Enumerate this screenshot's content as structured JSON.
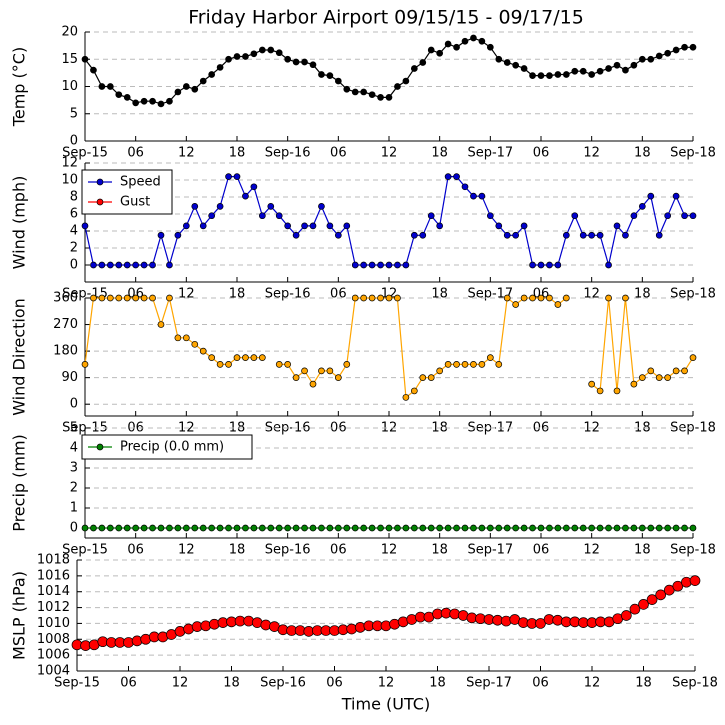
{
  "chart_data": [
    {
      "type": "line",
      "title": "Friday Harbor Airport 09/15/15 - 09/17/15",
      "ylabel": "Temp (°C)",
      "x": [
        0,
        1,
        2,
        3,
        4,
        5,
        6,
        7,
        8,
        9,
        10,
        11,
        12,
        13,
        14,
        15,
        16,
        17,
        18,
        19,
        20,
        21,
        22,
        23,
        24,
        25,
        26,
        27,
        28,
        29,
        30,
        31,
        32,
        33,
        34,
        35,
        36,
        37,
        38,
        39,
        40,
        41,
        42,
        43,
        44,
        45,
        46,
        47,
        48,
        49,
        50,
        51,
        52,
        53,
        54,
        55,
        56,
        57,
        58,
        59,
        60,
        61,
        62,
        63,
        64,
        65,
        66,
        67,
        68,
        69,
        70,
        71,
        72
      ],
      "xlim": [
        0,
        72
      ],
      "xticks": [
        {
          "value": 0,
          "label": "Sep-15"
        },
        {
          "value": 6,
          "label": "06"
        },
        12,
        18,
        {
          "value": 24,
          "label": "Sep-16"
        },
        {
          "value": 30,
          "label": "06"
        },
        {
          "value": 36,
          "label": "12"
        },
        {
          "value": 42,
          "label": "18"
        },
        {
          "value": 48,
          "label": "Sep-17"
        },
        {
          "value": 54,
          "label": "06"
        },
        {
          "value": 60,
          "label": "12"
        },
        {
          "value": 66,
          "label": "18"
        },
        {
          "value": 72,
          "label": "Sep-18"
        }
      ],
      "ylim": [
        0,
        20
      ],
      "yticks": [
        0,
        5,
        10,
        15,
        20
      ],
      "grid": true,
      "series": [
        {
          "name": "Temp",
          "color": "#000000",
          "values": [
            15,
            13,
            10,
            10,
            8.5,
            8,
            7,
            7.3,
            7.3,
            6.8,
            7.3,
            9,
            10,
            9.5,
            11,
            12.2,
            13.5,
            15,
            15.5,
            15.5,
            16,
            16.7,
            16.7,
            16.2,
            15,
            14.5,
            14.5,
            14,
            12.2,
            12,
            11,
            9.5,
            9,
            9,
            8.5,
            8,
            8,
            10,
            11,
            13.3,
            14.4,
            16.7,
            16.1,
            17.8,
            17.2,
            18.3,
            18.9,
            18.3,
            17.2,
            15,
            14.4,
            13.9,
            13.3,
            12,
            12,
            12,
            12.2,
            12.2,
            12.8,
            12.8,
            12.2,
            12.8,
            13.3,
            13.9,
            13,
            13.9,
            15,
            15,
            15.6,
            16.1,
            16.7,
            17.2,
            17.2
          ]
        }
      ]
    },
    {
      "type": "line",
      "ylabel": "Wind (mph)",
      "x": [
        0,
        1,
        2,
        3,
        4,
        5,
        6,
        7,
        8,
        9,
        10,
        11,
        12,
        13,
        14,
        15,
        16,
        17,
        18,
        19,
        20,
        21,
        22,
        23,
        24,
        25,
        26,
        27,
        28,
        29,
        30,
        31,
        32,
        33,
        34,
        35,
        36,
        37,
        38,
        39,
        40,
        41,
        42,
        43,
        44,
        45,
        46,
        47,
        48,
        49,
        50,
        51,
        52,
        53,
        54,
        55,
        56,
        57,
        58,
        59,
        60,
        61,
        62,
        63,
        64,
        65,
        66,
        67,
        68,
        69,
        70,
        71,
        72
      ],
      "xlim": [
        0,
        72
      ],
      "xticks": [
        {
          "value": 0,
          "label": "Sep-15"
        },
        {
          "value": 6,
          "label": "06"
        },
        12,
        18,
        {
          "value": 24,
          "label": "Sep-16"
        },
        {
          "value": 30,
          "label": "06"
        },
        {
          "value": 36,
          "label": "12"
        },
        {
          "value": 42,
          "label": "18"
        },
        {
          "value": 48,
          "label": "Sep-17"
        },
        {
          "value": 54,
          "label": "06"
        },
        {
          "value": 60,
          "label": "12"
        },
        {
          "value": 66,
          "label": "18"
        },
        {
          "value": 72,
          "label": "Sep-18"
        }
      ],
      "ylim": [
        -2,
        12
      ],
      "yticks": [
        0,
        2,
        4,
        6,
        8,
        10,
        12
      ],
      "grid": true,
      "legend": "upper left",
      "series": [
        {
          "name": "Speed",
          "color": "#0000cc",
          "values": [
            4.6,
            0,
            0,
            0,
            0,
            0,
            0,
            0,
            0,
            3.5,
            0,
            3.5,
            4.6,
            6.9,
            4.6,
            5.8,
            6.9,
            10.4,
            10.4,
            8.1,
            9.2,
            5.8,
            6.9,
            5.8,
            4.6,
            3.5,
            4.6,
            4.6,
            6.9,
            4.6,
            3.5,
            4.6,
            0,
            0,
            0,
            0,
            0,
            0,
            0,
            3.5,
            3.5,
            5.8,
            4.6,
            10.4,
            10.4,
            9.2,
            8.1,
            8.1,
            5.8,
            4.6,
            3.5,
            3.5,
            4.6,
            0,
            0,
            0,
            0,
            3.5,
            5.8,
            3.5,
            3.5,
            3.5,
            0,
            4.6,
            3.5,
            5.8,
            6.9,
            8.1,
            3.5,
            5.8,
            8.1,
            5.8,
            5.8
          ]
        },
        {
          "name": "Gust",
          "color": "#ff0000",
          "values": [
            null,
            null,
            null,
            null,
            null,
            null,
            null,
            null,
            null,
            null,
            null,
            null,
            null,
            null,
            null,
            null,
            null,
            null,
            null,
            null,
            null,
            null,
            null,
            null,
            null,
            null,
            null,
            null,
            null,
            null,
            null,
            null,
            null,
            null,
            null,
            null,
            null,
            null,
            null,
            null,
            null,
            null,
            null,
            null,
            null,
            null,
            null,
            null,
            null,
            null,
            null,
            null,
            null,
            null,
            null,
            null,
            null,
            null,
            null,
            null,
            null,
            null,
            null,
            null,
            null,
            null,
            null,
            null,
            null,
            null,
            null,
            null,
            null
          ]
        }
      ]
    },
    {
      "type": "line",
      "ylabel": "Wind Direction",
      "x": [
        0,
        1,
        2,
        3,
        4,
        5,
        6,
        7,
        8,
        9,
        10,
        11,
        12,
        13,
        14,
        15,
        16,
        17,
        18,
        19,
        20,
        21,
        22,
        23,
        24,
        25,
        26,
        27,
        28,
        29,
        30,
        31,
        32,
        33,
        34,
        35,
        36,
        37,
        38,
        39,
        40,
        41,
        42,
        43,
        44,
        45,
        46,
        47,
        48,
        49,
        50,
        51,
        52,
        53,
        54,
        55,
        56,
        57,
        58,
        59,
        60,
        61,
        62,
        63,
        64,
        65,
        66,
        67,
        68,
        69,
        70,
        71,
        72
      ],
      "xlim": [
        0,
        72
      ],
      "xticks": [
        {
          "value": 0,
          "label": "Sep-15"
        },
        {
          "value": 6,
          "label": "06"
        },
        12,
        18,
        {
          "value": 24,
          "label": "Sep-16"
        },
        {
          "value": 30,
          "label": "06"
        },
        {
          "value": 36,
          "label": "12"
        },
        {
          "value": 42,
          "label": "18"
        },
        {
          "value": 48,
          "label": "Sep-17"
        },
        {
          "value": 54,
          "label": "06"
        },
        {
          "value": 60,
          "label": "12"
        },
        {
          "value": 66,
          "label": "18"
        },
        {
          "value": 72,
          "label": "Sep-18"
        }
      ],
      "ylim": [
        -40,
        360
      ],
      "yticks": [
        0,
        90,
        180,
        270,
        360
      ],
      "grid": true,
      "series": [
        {
          "name": "Direction",
          "color": "#ffa500",
          "values": [
            135,
            360,
            360,
            360,
            360,
            360,
            360,
            360,
            360,
            270,
            360,
            225,
            225,
            203,
            180,
            158,
            135,
            135,
            158,
            158,
            158,
            158,
            null,
            135,
            135,
            90,
            113,
            68,
            113,
            113,
            90,
            135,
            360,
            360,
            360,
            360,
            360,
            360,
            23,
            45,
            90,
            90,
            113,
            135,
            135,
            135,
            135,
            135,
            158,
            135,
            360,
            338,
            360,
            360,
            360,
            360,
            338,
            360,
            null,
            null,
            68,
            45,
            360,
            45,
            360,
            68,
            90,
            113,
            90,
            90,
            113,
            113,
            158
          ]
        }
      ]
    },
    {
      "type": "line",
      "ylabel": "Precip (mm)",
      "x": [
        0,
        1,
        2,
        3,
        4,
        5,
        6,
        7,
        8,
        9,
        10,
        11,
        12,
        13,
        14,
        15,
        16,
        17,
        18,
        19,
        20,
        21,
        22,
        23,
        24,
        25,
        26,
        27,
        28,
        29,
        30,
        31,
        32,
        33,
        34,
        35,
        36,
        37,
        38,
        39,
        40,
        41,
        42,
        43,
        44,
        45,
        46,
        47,
        48,
        49,
        50,
        51,
        52,
        53,
        54,
        55,
        56,
        57,
        58,
        59,
        60,
        61,
        62,
        63,
        64,
        65,
        66,
        67,
        68,
        69,
        70,
        71,
        72
      ],
      "xlim": [
        0,
        72
      ],
      "xticks": [
        {
          "value": 0,
          "label": "Sep-15"
        },
        {
          "value": 6,
          "label": "06"
        },
        12,
        18,
        {
          "value": 24,
          "label": "Sep-16"
        },
        {
          "value": 30,
          "label": "06"
        },
        {
          "value": 36,
          "label": "12"
        },
        {
          "value": 42,
          "label": "18"
        },
        {
          "value": 48,
          "label": "Sep-17"
        },
        {
          "value": 54,
          "label": "06"
        },
        {
          "value": 60,
          "label": "12"
        },
        {
          "value": 66,
          "label": "18"
        },
        {
          "value": 72,
          "label": "Sep-18"
        }
      ],
      "ylim": [
        -0.5,
        5
      ],
      "yticks": [
        0,
        1,
        2,
        3,
        4,
        5
      ],
      "grid": true,
      "legend": "upper left",
      "series": [
        {
          "name": "Precip (0.0 mm)",
          "color": "#008000",
          "values": [
            0,
            0,
            0,
            0,
            0,
            0,
            0,
            0,
            0,
            0,
            0,
            0,
            0,
            0,
            0,
            0,
            0,
            0,
            0,
            0,
            0,
            0,
            0,
            0,
            0,
            0,
            0,
            0,
            0,
            0,
            0,
            0,
            0,
            0,
            0,
            0,
            0,
            0,
            0,
            0,
            0,
            0,
            0,
            0,
            0,
            0,
            0,
            0,
            0,
            0,
            0,
            0,
            0,
            0,
            0,
            0,
            0,
            0,
            0,
            0,
            0,
            0,
            0,
            0,
            0,
            0,
            0,
            0,
            0,
            0,
            0,
            0,
            0
          ]
        }
      ]
    },
    {
      "type": "line",
      "ylabel": "MSLP (hPa)",
      "xlabel": "Time (UTC)",
      "x": [
        0,
        1,
        2,
        3,
        4,
        5,
        6,
        7,
        8,
        9,
        10,
        11,
        12,
        13,
        14,
        15,
        16,
        17,
        18,
        19,
        20,
        21,
        22,
        23,
        24,
        25,
        26,
        27,
        28,
        29,
        30,
        31,
        32,
        33,
        34,
        35,
        36,
        37,
        38,
        39,
        40,
        41,
        42,
        43,
        44,
        45,
        46,
        47,
        48,
        49,
        50,
        51,
        52,
        53,
        54,
        55,
        56,
        57,
        58,
        59,
        60,
        61,
        62,
        63,
        64,
        65,
        66,
        67,
        68,
        69,
        70,
        71,
        72
      ],
      "xlim": [
        0,
        72
      ],
      "xticks": [
        {
          "value": 0,
          "label": "Sep-15"
        },
        {
          "value": 6,
          "label": "06"
        },
        12,
        18,
        {
          "value": 24,
          "label": "Sep-16"
        },
        {
          "value": 30,
          "label": "06"
        },
        {
          "value": 36,
          "label": "12"
        },
        {
          "value": 42,
          "label": "18"
        },
        {
          "value": 48,
          "label": "Sep-17"
        },
        {
          "value": 54,
          "label": "06"
        },
        {
          "value": 60,
          "label": "12"
        },
        {
          "value": 66,
          "label": "18"
        },
        {
          "value": 72,
          "label": "Sep-18"
        }
      ],
      "ylim": [
        1004,
        1018
      ],
      "yticks": [
        1004,
        1006,
        1008,
        1010,
        1012,
        1014,
        1016,
        1018
      ],
      "grid": true,
      "series": [
        {
          "name": "MSLP",
          "color": "#ff0000",
          "values": [
            1007.3,
            1007.2,
            1007.3,
            1007.7,
            1007.6,
            1007.6,
            1007.6,
            1007.8,
            1008,
            1008.3,
            1008.3,
            1008.6,
            1009,
            1009.3,
            1009.6,
            1009.7,
            1009.9,
            1010.1,
            1010.2,
            1010.3,
            1010.3,
            1010.1,
            1009.8,
            1009.6,
            1009.2,
            1009.1,
            1009.1,
            1009,
            1009.1,
            1009.1,
            1009.1,
            1009.2,
            1009.3,
            1009.5,
            1009.7,
            1009.7,
            1009.7,
            1009.9,
            1010.2,
            1010.5,
            1010.8,
            1010.8,
            1011.2,
            1011.3,
            1011.2,
            1011,
            1010.7,
            1010.6,
            1010.5,
            1010.4,
            1010.3,
            1010.5,
            1010.1,
            1010,
            1010,
            1010.5,
            1010.4,
            1010.2,
            1010.2,
            1010.1,
            1010.1,
            1010.2,
            1010.2,
            1010.6,
            1011,
            1011.8,
            1012.4,
            1013,
            1013.6,
            1014.2,
            1014.7,
            1015.2,
            1015.4
          ]
        }
      ]
    }
  ]
}
